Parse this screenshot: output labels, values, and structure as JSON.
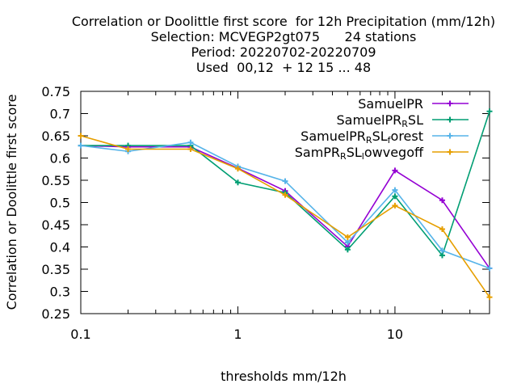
{
  "chart_data": {
    "type": "line",
    "title": [
      "Correlation or Doolittle first score  for 12h Precipitation (mm/12h)",
      "Selection: MCVEGP2gt075      24 stations",
      "Period: 20220702-20220709",
      "Used  00,12  + 12 15 ... 48"
    ],
    "xlabel": "thresholds mm/12h",
    "ylabel": "Correlation or Doolittle first score",
    "xscale": "log",
    "xlim": [
      0.1,
      40
    ],
    "ylim": [
      0.25,
      0.75
    ],
    "xticks": [
      {
        "value": 0.1,
        "label": "0.1"
      },
      {
        "value": 1,
        "label": "1"
      },
      {
        "value": 10,
        "label": "10"
      }
    ],
    "yticks": [
      {
        "value": 0.25,
        "label": "0.25"
      },
      {
        "value": 0.3,
        "label": "0.3"
      },
      {
        "value": 0.35,
        "label": "0.35"
      },
      {
        "value": 0.4,
        "label": "0.4"
      },
      {
        "value": 0.45,
        "label": "0.45"
      },
      {
        "value": 0.5,
        "label": "0.5"
      },
      {
        "value": 0.55,
        "label": "0.55"
      },
      {
        "value": 0.6,
        "label": "0.6"
      },
      {
        "value": 0.65,
        "label": "0.65"
      },
      {
        "value": 0.7,
        "label": "0.7"
      },
      {
        "value": 0.75,
        "label": "0.75"
      }
    ],
    "grid": false,
    "legend_position": "top-right",
    "x": [
      0.1,
      0.2,
      0.5,
      1,
      2,
      5,
      10,
      20,
      40
    ],
    "series": [
      {
        "legend": {
          "base": "SamuelPR",
          "sub": "",
          "tail": ""
        },
        "color": "#9400d3",
        "values": [
          0.628,
          0.625,
          0.625,
          0.577,
          0.526,
          0.401,
          0.572,
          0.505,
          0.352
        ]
      },
      {
        "legend": {
          "base": "SamuelPR",
          "sub": "R",
          "tail": "SL"
        },
        "color": "#009e73",
        "values": [
          0.628,
          0.628,
          0.628,
          0.545,
          0.522,
          0.394,
          0.514,
          0.381,
          0.705
        ]
      },
      {
        "legend": {
          "base": "SamuelPR",
          "sub": "R",
          "tail": "SL",
          "sub2": "f",
          "tail2": "orest"
        },
        "color": "#56b4e9",
        "values": [
          0.628,
          0.615,
          0.635,
          0.581,
          0.548,
          0.41,
          0.528,
          0.392,
          0.352
        ]
      },
      {
        "legend": {
          "base": "SamPR",
          "sub": "R",
          "tail": "SL",
          "sub2": "l",
          "tail2": "owvegoff"
        },
        "color": "#e69f00",
        "values": [
          0.65,
          0.62,
          0.62,
          0.576,
          0.517,
          0.422,
          0.493,
          0.44,
          0.287
        ]
      }
    ]
  }
}
